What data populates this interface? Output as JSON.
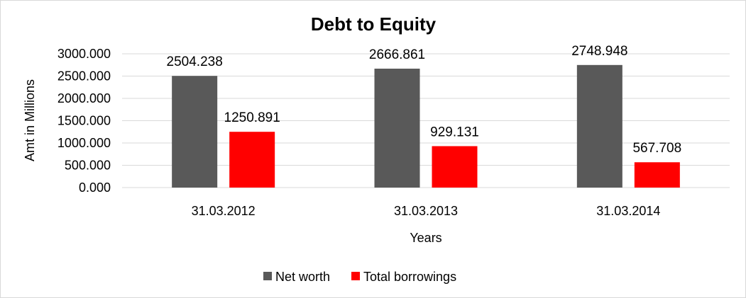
{
  "chart_data": {
    "type": "bar",
    "title": "Debt to Equity",
    "xlabel": "Years",
    "ylabel": "Amt in Millions",
    "categories": [
      "31.03.2012",
      "31.03.2013",
      "31.03.2014"
    ],
    "series": [
      {
        "name": "Net worth",
        "color": "#595959",
        "values": [
          2504.238,
          2666.861,
          2748.948
        ],
        "labels": [
          "2504.238",
          "2666.861",
          "2748.948"
        ]
      },
      {
        "name": "Total borrowings",
        "color": "#ff0000",
        "values": [
          1250.891,
          929.131,
          567.708
        ],
        "labels": [
          "1250.891",
          "929.131",
          "567.708"
        ]
      }
    ],
    "ylim": [
      0,
      3000
    ],
    "yticks": [
      "0.000",
      "500.000",
      "1000.000",
      "1500.000",
      "2000.000",
      "2500.000",
      "3000.000"
    ],
    "grid": true,
    "legend": "bottom"
  }
}
